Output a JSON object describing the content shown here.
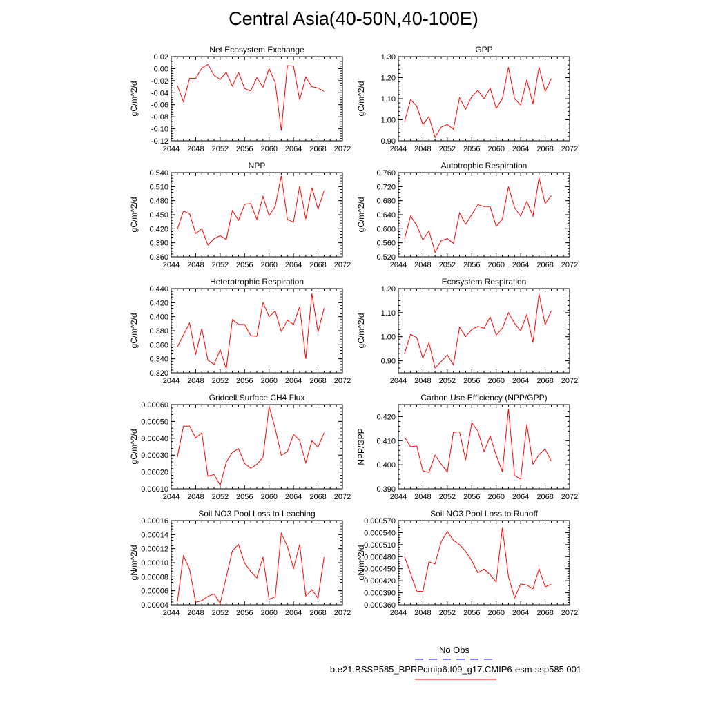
{
  "title": "Central Asia(40-50N,40-100E)",
  "colors": {
    "model": "#ff0000",
    "obs": "#0000ff",
    "axis": "#000000"
  },
  "legend": {
    "obs_label": "No Obs",
    "model_label": "b.e21.BSSP585_BPRPcmip6.f09_g17.CMIP6-esm-ssp585.001"
  },
  "chart_data": [
    {
      "type": "line",
      "title": "Net Ecosystem Exchange",
      "xlabel": "",
      "ylabel": "gC/m^2/d",
      "xlim": [
        2044,
        2072
      ],
      "ylim": [
        -0.12,
        0.02
      ],
      "xticks": [
        "2044",
        "2048",
        "2052",
        "2056",
        "2060",
        "2064",
        "2068",
        "2072"
      ],
      "yticks": [
        "-0.12",
        "-0.10",
        "-0.08",
        "-0.06",
        "-0.04",
        "-0.02",
        "0.00",
        "0.02"
      ],
      "grid": false,
      "x": [
        2045,
        2046,
        2047,
        2048,
        2049,
        2050,
        2051,
        2052,
        2053,
        2054,
        2055,
        2056,
        2057,
        2058,
        2059,
        2060,
        2061,
        2062,
        2063,
        2064,
        2065,
        2066,
        2067,
        2068,
        2069
      ],
      "y": [
        -0.028,
        -0.055,
        -0.016,
        -0.016,
        0.001,
        0.007,
        -0.011,
        -0.018,
        -0.006,
        -0.029,
        -0.006,
        -0.033,
        -0.037,
        -0.015,
        -0.031,
        0.0,
        -0.023,
        -0.103,
        0.005,
        0.004,
        -0.052,
        -0.014,
        -0.03,
        -0.032,
        -0.038
      ]
    },
    {
      "type": "line",
      "title": "GPP",
      "xlabel": "",
      "ylabel": "gC/m^2/d",
      "xlim": [
        2044,
        2072
      ],
      "ylim": [
        0.9,
        1.3
      ],
      "xticks": [
        "2044",
        "2048",
        "2052",
        "2056",
        "2060",
        "2064",
        "2068",
        "2072"
      ],
      "yticks": [
        "0.90",
        "1.00",
        "1.10",
        "1.20",
        "1.30"
      ],
      "grid": false,
      "x": [
        2045,
        2046,
        2047,
        2048,
        2049,
        2050,
        2051,
        2052,
        2053,
        2054,
        2055,
        2056,
        2057,
        2058,
        2059,
        2060,
        2061,
        2062,
        2063,
        2064,
        2065,
        2066,
        2067,
        2068,
        2069
      ],
      "y": [
        0.99,
        1.095,
        1.065,
        0.978,
        1.015,
        0.916,
        0.965,
        0.978,
        0.955,
        1.105,
        1.05,
        1.11,
        1.14,
        1.1,
        1.15,
        1.055,
        1.1,
        1.25,
        1.1,
        1.07,
        1.19,
        1.075,
        1.25,
        1.135,
        1.195
      ]
    },
    {
      "type": "line",
      "title": "NPP",
      "xlabel": "",
      "ylabel": "gC/m^2/d",
      "xlim": [
        2044,
        2072
      ],
      "ylim": [
        0.36,
        0.54
      ],
      "xticks": [
        "2044",
        "2048",
        "2052",
        "2056",
        "2060",
        "2064",
        "2068",
        "2072"
      ],
      "yticks": [
        "0.360",
        "0.390",
        "0.420",
        "0.450",
        "0.480",
        "0.510",
        "0.540"
      ],
      "grid": false,
      "x": [
        2045,
        2046,
        2047,
        2048,
        2049,
        2050,
        2051,
        2052,
        2053,
        2054,
        2055,
        2056,
        2057,
        2058,
        2059,
        2060,
        2061,
        2062,
        2063,
        2064,
        2065,
        2066,
        2067,
        2068,
        2069
      ],
      "y": [
        0.419,
        0.458,
        0.452,
        0.41,
        0.42,
        0.385,
        0.399,
        0.405,
        0.397,
        0.459,
        0.438,
        0.472,
        0.474,
        0.44,
        0.489,
        0.448,
        0.468,
        0.533,
        0.44,
        0.434,
        0.511,
        0.441,
        0.508,
        0.462,
        0.501
      ]
    },
    {
      "type": "line",
      "title": "Autotrophic Respiration",
      "xlabel": "",
      "ylabel": "gC/m^2/d",
      "xlim": [
        2044,
        2072
      ],
      "ylim": [
        0.52,
        0.76
      ],
      "xticks": [
        "2044",
        "2048",
        "2052",
        "2056",
        "2060",
        "2064",
        "2068",
        "2072"
      ],
      "yticks": [
        "0.520",
        "0.560",
        "0.600",
        "0.640",
        "0.680",
        "0.720",
        "0.760"
      ],
      "grid": false,
      "x": [
        2045,
        2046,
        2047,
        2048,
        2049,
        2050,
        2051,
        2052,
        2053,
        2054,
        2055,
        2056,
        2057,
        2058,
        2059,
        2060,
        2061,
        2062,
        2063,
        2064,
        2065,
        2066,
        2067,
        2068,
        2069
      ],
      "y": [
        0.571,
        0.636,
        0.61,
        0.568,
        0.594,
        0.533,
        0.566,
        0.572,
        0.558,
        0.645,
        0.613,
        0.64,
        0.669,
        0.663,
        0.663,
        0.607,
        0.628,
        0.72,
        0.66,
        0.636,
        0.678,
        0.636,
        0.745,
        0.672,
        0.694
      ]
    },
    {
      "type": "line",
      "title": "Heterotrophic Respiration",
      "xlabel": "",
      "ylabel": "gC/m^2/d",
      "xlim": [
        2044,
        2072
      ],
      "ylim": [
        0.32,
        0.44
      ],
      "xticks": [
        "2044",
        "2048",
        "2052",
        "2056",
        "2060",
        "2064",
        "2068",
        "2072"
      ],
      "yticks": [
        "0.320",
        "0.340",
        "0.360",
        "0.380",
        "0.400",
        "0.420",
        "0.440"
      ],
      "grid": false,
      "x": [
        2045,
        2046,
        2047,
        2048,
        2049,
        2050,
        2051,
        2052,
        2053,
        2054,
        2055,
        2056,
        2057,
        2058,
        2059,
        2060,
        2061,
        2062,
        2063,
        2064,
        2065,
        2066,
        2067,
        2068,
        2069
      ],
      "y": [
        0.357,
        0.374,
        0.391,
        0.346,
        0.383,
        0.338,
        0.332,
        0.353,
        0.326,
        0.396,
        0.389,
        0.389,
        0.373,
        0.372,
        0.42,
        0.4,
        0.408,
        0.379,
        0.395,
        0.389,
        0.414,
        0.34,
        0.433,
        0.378,
        0.412
      ]
    },
    {
      "type": "line",
      "title": "Ecosystem Respiration",
      "xlabel": "",
      "ylabel": "gC/m^2/d",
      "xlim": [
        2044,
        2072
      ],
      "ylim": [
        0.85,
        1.2
      ],
      "xticks": [
        "2044",
        "2048",
        "2052",
        "2056",
        "2060",
        "2064",
        "2068",
        "2072"
      ],
      "yticks": [
        "0.90",
        "1.00",
        "1.10",
        "1.20"
      ],
      "grid": false,
      "x": [
        2045,
        2046,
        2047,
        2048,
        2049,
        2050,
        2051,
        2052,
        2053,
        2054,
        2055,
        2056,
        2057,
        2058,
        2059,
        2060,
        2061,
        2062,
        2063,
        2064,
        2065,
        2066,
        2067,
        2068,
        2069
      ],
      "y": [
        0.93,
        1.01,
        0.997,
        0.91,
        0.975,
        0.87,
        0.897,
        0.925,
        0.883,
        1.04,
        1.0,
        1.03,
        1.043,
        1.035,
        1.082,
        1.007,
        1.035,
        1.1,
        1.055,
        1.025,
        1.092,
        0.975,
        1.178,
        1.05,
        1.108
      ]
    },
    {
      "type": "line",
      "title": "Gridcell Surface CH4 Flux",
      "xlabel": "",
      "ylabel": "gC/m^2/d",
      "xlim": [
        2044,
        2072
      ],
      "ylim": [
        0.0001,
        0.0006
      ],
      "xticks": [
        "2044",
        "2048",
        "2052",
        "2056",
        "2060",
        "2064",
        "2068",
        "2072"
      ],
      "yticks": [
        "0.00010",
        "0.00020",
        "0.00030",
        "0.00040",
        "0.00050",
        "0.00060"
      ],
      "grid": false,
      "x": [
        2045,
        2046,
        2047,
        2048,
        2049,
        2050,
        2051,
        2052,
        2053,
        2054,
        2055,
        2056,
        2057,
        2058,
        2059,
        2060,
        2061,
        2062,
        2063,
        2064,
        2065,
        2066,
        2067,
        2068,
        2069
      ],
      "y": [
        0.00029,
        0.000472,
        0.000472,
        0.000402,
        0.000432,
        0.000175,
        0.000185,
        0.000121,
        0.000258,
        0.000317,
        0.000338,
        0.000251,
        0.000222,
        0.000245,
        0.000288,
        0.000588,
        0.000458,
        0.000299,
        0.000321,
        0.000423,
        0.000387,
        0.000255,
        0.000385,
        0.000347,
        0.000433
      ]
    },
    {
      "type": "line",
      "title": "Carbon Use Efficiency (NPP/GPP)",
      "xlabel": "",
      "ylabel": "NPP/GPP",
      "xlim": [
        2044,
        2072
      ],
      "ylim": [
        0.39,
        0.425
      ],
      "xticks": [
        "2044",
        "2048",
        "2052",
        "2056",
        "2060",
        "2064",
        "2068",
        "2072"
      ],
      "yticks": [
        "0.390",
        "0.400",
        "0.410",
        "0.420"
      ],
      "grid": false,
      "x": [
        2045,
        2046,
        2047,
        2048,
        2049,
        2050,
        2051,
        2052,
        2053,
        2054,
        2055,
        2056,
        2057,
        2058,
        2059,
        2060,
        2061,
        2062,
        2063,
        2064,
        2065,
        2066,
        2067,
        2068,
        2069
      ],
      "y": [
        0.4115,
        0.4075,
        0.4078,
        0.3975,
        0.3968,
        0.404,
        0.4003,
        0.397,
        0.4135,
        0.4137,
        0.402,
        0.4175,
        0.414,
        0.4055,
        0.4118,
        0.404,
        0.3971,
        0.4232,
        0.3955,
        0.394,
        0.4168,
        0.4002,
        0.4042,
        0.4065,
        0.4015
      ]
    },
    {
      "type": "line",
      "title": "Soil NO3 Pool Loss to Leaching",
      "xlabel": "",
      "ylabel": "gN/m^2/d",
      "xlim": [
        2044,
        2072
      ],
      "ylim": [
        4e-05,
        0.00016
      ],
      "xticks": [
        "2044",
        "2048",
        "2052",
        "2056",
        "2060",
        "2064",
        "2068",
        "2072"
      ],
      "yticks": [
        "0.00004",
        "0.00006",
        "0.00008",
        "0.00010",
        "0.00012",
        "0.00014",
        "0.00016"
      ],
      "grid": false,
      "x": [
        2045,
        2046,
        2047,
        2048,
        2049,
        2050,
        2051,
        2052,
        2053,
        2054,
        2055,
        2056,
        2057,
        2058,
        2059,
        2060,
        2061,
        2062,
        2063,
        2064,
        2065,
        2066,
        2067,
        2068,
        2069
      ],
      "y": [
        4.45e-05,
        0.00011,
        9.05e-05,
        4.35e-05,
        4.6e-05,
        5.2e-05,
        5.55e-05,
        4.2e-05,
        7.95e-05,
        0.000117,
        0.000126,
        9.95e-05,
        8.75e-05,
        7.85e-05,
        0.000108,
        4.75e-05,
        5.15e-05,
        0.000142,
        0.000123,
        9.15e-05,
        0.000126,
        5.25e-05,
        6.15e-05,
        4.95e-05,
        0.000108
      ]
    },
    {
      "type": "line",
      "title": "Soil NO3 Pool Loss to Runoff",
      "xlabel": "",
      "ylabel": "gN/m^2/d",
      "xlim": [
        2044,
        2072
      ],
      "ylim": [
        0.00036,
        0.00057
      ],
      "xticks": [
        "2044",
        "2048",
        "2052",
        "2056",
        "2060",
        "2064",
        "2068",
        "2072"
      ],
      "yticks": [
        "0.000360",
        "0.000390",
        "0.000420",
        "0.000450",
        "0.000480",
        "0.000510",
        "0.000540",
        "0.000570"
      ],
      "grid": false,
      "x": [
        2045,
        2046,
        2047,
        2048,
        2049,
        2050,
        2051,
        2052,
        2053,
        2054,
        2055,
        2056,
        2057,
        2058,
        2059,
        2060,
        2061,
        2062,
        2063,
        2064,
        2065,
        2066,
        2067,
        2068,
        2069
      ],
      "y": [
        0.00048,
        0.000438,
        0.000394,
        0.000393,
        0.000467,
        0.000462,
        0.000517,
        0.000543,
        0.000521,
        0.00051,
        0.000493,
        0.00047,
        0.00044,
        0.000449,
        0.000435,
        0.000417,
        0.000552,
        0.00043,
        0.000377,
        0.000412,
        0.000409,
        0.0004,
        0.00045,
        0.000405,
        0.000411
      ]
    }
  ]
}
